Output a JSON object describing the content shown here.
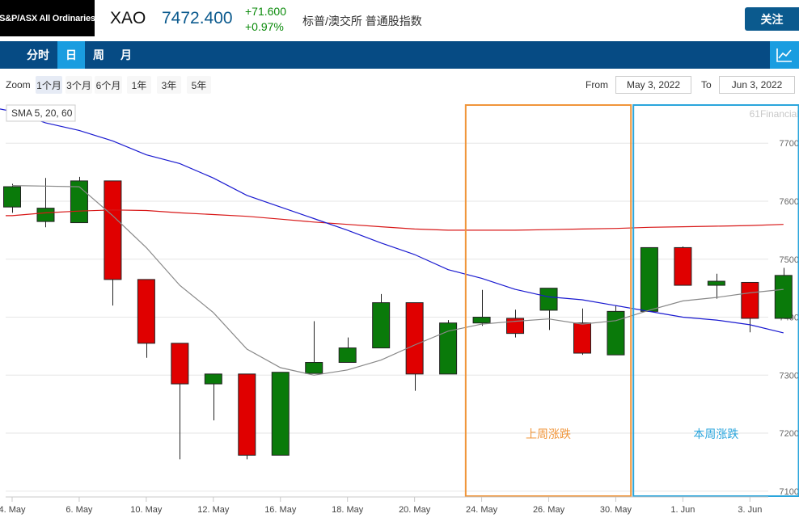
{
  "header": {
    "logo_text": "S&P/ASX All Ordinaries",
    "symbol": "XAO",
    "price": "7472.400",
    "change": "+71.600",
    "change_pct": "+0.97%",
    "description": "标普/澳交所 普通股指数",
    "follow_label": "关注"
  },
  "tabs": [
    "分时",
    "日",
    "周",
    "月"
  ],
  "active_tab": 1,
  "toolbar_icon": "line-chart-icon",
  "zoom": {
    "label": "Zoom",
    "options": [
      "1个月",
      "3个月",
      "6个月",
      "1年",
      "3年",
      "5年"
    ],
    "selected": 0,
    "from_label": "From",
    "from_value": "May 3, 2022",
    "to_label": "To",
    "to_value": "Jun 3, 2022"
  },
  "colors": {
    "up": "#0a7a0a",
    "down": "#e00000",
    "sma5": "#888888",
    "sma20": "#1a1ad0",
    "sma60": "#d81818",
    "last_week_box": "#f0953a",
    "this_week_box": "#2aa5dc",
    "header_blue": "#064b84",
    "active_tab": "#1a9de0"
  },
  "chart_data": {
    "type": "candlestick",
    "legend": "SMA 5, 20, 60",
    "watermark": "61Financial",
    "ylim": [
      7090,
      7770
    ],
    "y_ticks": [
      7100,
      7200,
      7300,
      7400,
      7500,
      7600,
      7700
    ],
    "x_ticks": [
      "4. May",
      "6. May",
      "10. May",
      "12. May",
      "16. May",
      "18. May",
      "20. May",
      "24. May",
      "26. May",
      "30. May",
      "1. Jun",
      "3. Jun"
    ],
    "candles": [
      {
        "o": 7590,
        "h": 7630,
        "l": 7580,
        "c": 7625
      },
      {
        "o": 7565,
        "h": 7640,
        "l": 7555,
        "c": 7588
      },
      {
        "o": 7563,
        "h": 7642,
        "l": 7563,
        "c": 7635
      },
      {
        "o": 7635,
        "h": 7635,
        "l": 7420,
        "c": 7465
      },
      {
        "o": 7465,
        "h": 7465,
        "l": 7330,
        "c": 7355
      },
      {
        "o": 7355,
        "h": 7355,
        "l": 7155,
        "c": 7285
      },
      {
        "o": 7285,
        "h": 7302,
        "l": 7222,
        "c": 7302
      },
      {
        "o": 7302,
        "h": 7302,
        "l": 7155,
        "c": 7162
      },
      {
        "o": 7162,
        "h": 7305,
        "l": 7162,
        "c": 7305
      },
      {
        "o": 7303,
        "h": 7393,
        "l": 7303,
        "c": 7322
      },
      {
        "o": 7322,
        "h": 7365,
        "l": 7322,
        "c": 7347
      },
      {
        "o": 7347,
        "h": 7440,
        "l": 7347,
        "c": 7425
      },
      {
        "o": 7425,
        "h": 7425,
        "l": 7273,
        "c": 7302
      },
      {
        "o": 7302,
        "h": 7395,
        "l": 7302,
        "c": 7390
      },
      {
        "o": 7390,
        "h": 7447,
        "l": 7385,
        "c": 7400
      },
      {
        "o": 7398,
        "h": 7413,
        "l": 7365,
        "c": 7372
      },
      {
        "o": 7412,
        "h": 7450,
        "l": 7378,
        "c": 7450
      },
      {
        "o": 7390,
        "h": 7415,
        "l": 7335,
        "c": 7338
      },
      {
        "o": 7335,
        "h": 7420,
        "l": 7335,
        "c": 7410
      },
      {
        "o": 7410,
        "h": 7520,
        "l": 7410,
        "c": 7520
      },
      {
        "o": 7520,
        "h": 7522,
        "l": 7455,
        "c": 7455
      },
      {
        "o": 7455,
        "h": 7475,
        "l": 7432,
        "c": 7462
      },
      {
        "o": 7460,
        "h": 7460,
        "l": 7374,
        "c": 7398
      },
      {
        "o": 7398,
        "h": 7485,
        "l": 7398,
        "c": 7472
      }
    ],
    "sma5": [
      7627,
      7626,
      7625,
      7575,
      7520,
      7455,
      7408,
      7345,
      7313,
      7300,
      7309,
      7326,
      7352,
      7376,
      7388,
      7393,
      7397,
      7388,
      7394,
      7412,
      7428,
      7434,
      7442,
      7448
    ],
    "sma20": [
      7755,
      7735,
      7722,
      7704,
      7680,
      7665,
      7640,
      7610,
      7590,
      7570,
      7550,
      7528,
      7508,
      7482,
      7467,
      7448,
      7435,
      7430,
      7420,
      7410,
      7400,
      7395,
      7387,
      7373
    ],
    "sma60": [
      7575,
      7580,
      7583,
      7585,
      7584,
      7580,
      7577,
      7574,
      7569,
      7564,
      7560,
      7556,
      7552,
      7550,
      7550,
      7550,
      7551,
      7552,
      7553,
      7555,
      7556,
      7557,
      7558,
      7560
    ],
    "annotations": [
      {
        "label": "上周涨跌",
        "from_index": 14,
        "to_index": 18,
        "color": "#f0953a"
      },
      {
        "label": "本周涨跌",
        "from_index": 19,
        "to_index": 23,
        "color": "#2aa5dc"
      }
    ]
  }
}
